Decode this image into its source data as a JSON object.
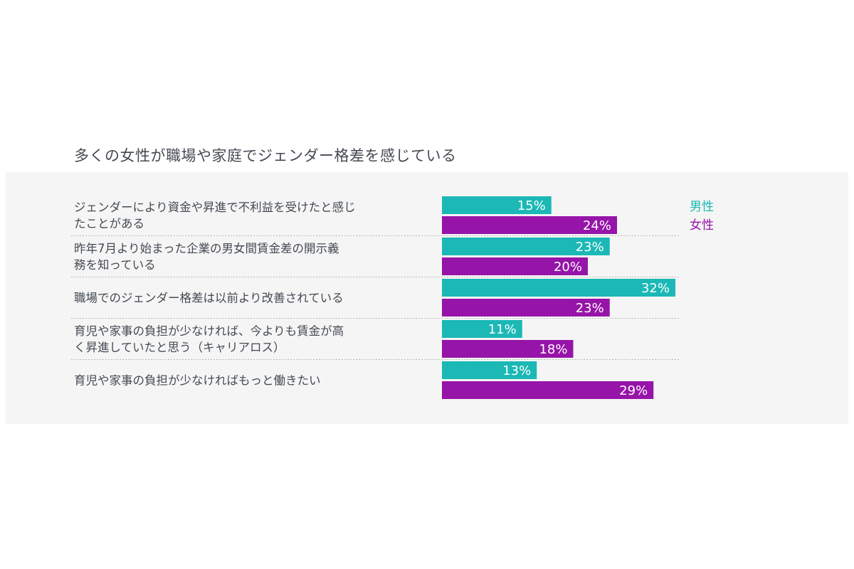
{
  "title": "多くの女性が職場や家庭でジェンダー格差を感じている",
  "colors": {
    "male": "#1bb8b6",
    "female": "#9614a8",
    "panel": "#f5f5f5",
    "text": "#444a52"
  },
  "chart_data": {
    "type": "bar",
    "orientation": "horizontal",
    "title": "多くの女性が職場や家庭でジェンダー格差を感じている",
    "categories": [
      [
        "ジェンダーにより資金や昇進で不利益を受けたと感じ",
        "たことがある"
      ],
      [
        "昨年7月より始まった企業の男女間賃金差の開示義",
        "務を知っている"
      ],
      [
        "職場でのジェンダー格差は以前より改善されている"
      ],
      [
        "育児や家事の負担が少なければ、今よりも賃金が高",
        "く昇進していたと思う（キャリアロス）"
      ],
      [
        "育児や家事の負担が少なければもっと働きたい"
      ]
    ],
    "series": [
      {
        "name": "男性",
        "values": [
          15,
          23,
          32,
          11,
          13
        ],
        "color": "#1bb8b6"
      },
      {
        "name": "女性",
        "values": [
          24,
          20,
          23,
          18,
          29
        ],
        "color": "#9614a8"
      }
    ],
    "value_suffix": "%",
    "xlim": [
      0,
      32
    ],
    "grid": false,
    "legend": "top-right"
  }
}
